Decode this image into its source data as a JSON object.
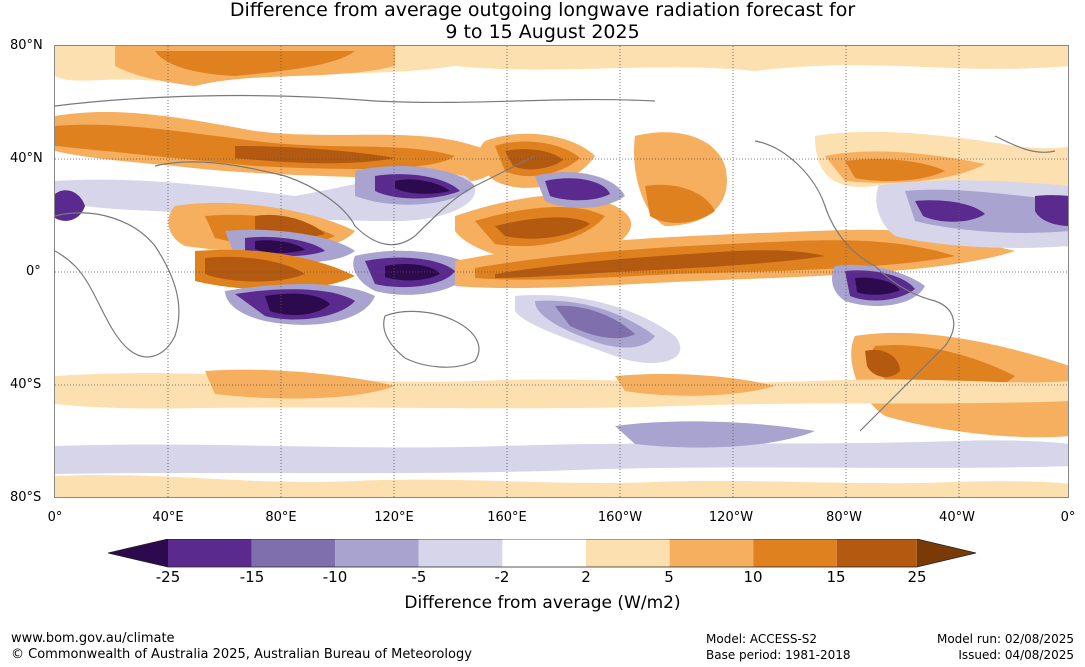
{
  "title": {
    "line1": "Difference from average outgoing longwave radiation forecast for",
    "line2": "9 to 15 August 2025"
  },
  "axes": {
    "lat_labels": [
      "80°N",
      "40°N",
      "0°",
      "40°S",
      "80°S"
    ],
    "lon_labels": [
      "0°",
      "40°E",
      "80°E",
      "120°E",
      "160°E",
      "160°W",
      "120°W",
      "80°W",
      "40°W",
      "0°"
    ]
  },
  "colorbar": {
    "title": "Difference from average (W/m2)",
    "ticks": [
      "-25",
      "-15",
      "-10",
      "-5",
      "-2",
      "2",
      "5",
      "10",
      "15",
      "25"
    ],
    "colors": [
      "#2d0a4e",
      "#5a2a8e",
      "#7f6fad",
      "#a9a3cf",
      "#d6d5ea",
      "#ffffff",
      "#fde0b0",
      "#f6ae5f",
      "#e08120",
      "#b35a10",
      "#7a3a05"
    ]
  },
  "footer": {
    "url": "www.bom.gov.au/climate",
    "copyright": "© Commonwealth of Australia 2025, Australian Bureau of Meteorology",
    "model": "Model: ACCESS-S2",
    "base_period": "Base period: 1981-2018",
    "model_run": "Model run: 02/08/2025",
    "issued": "Issued: 04/08/2025"
  }
}
